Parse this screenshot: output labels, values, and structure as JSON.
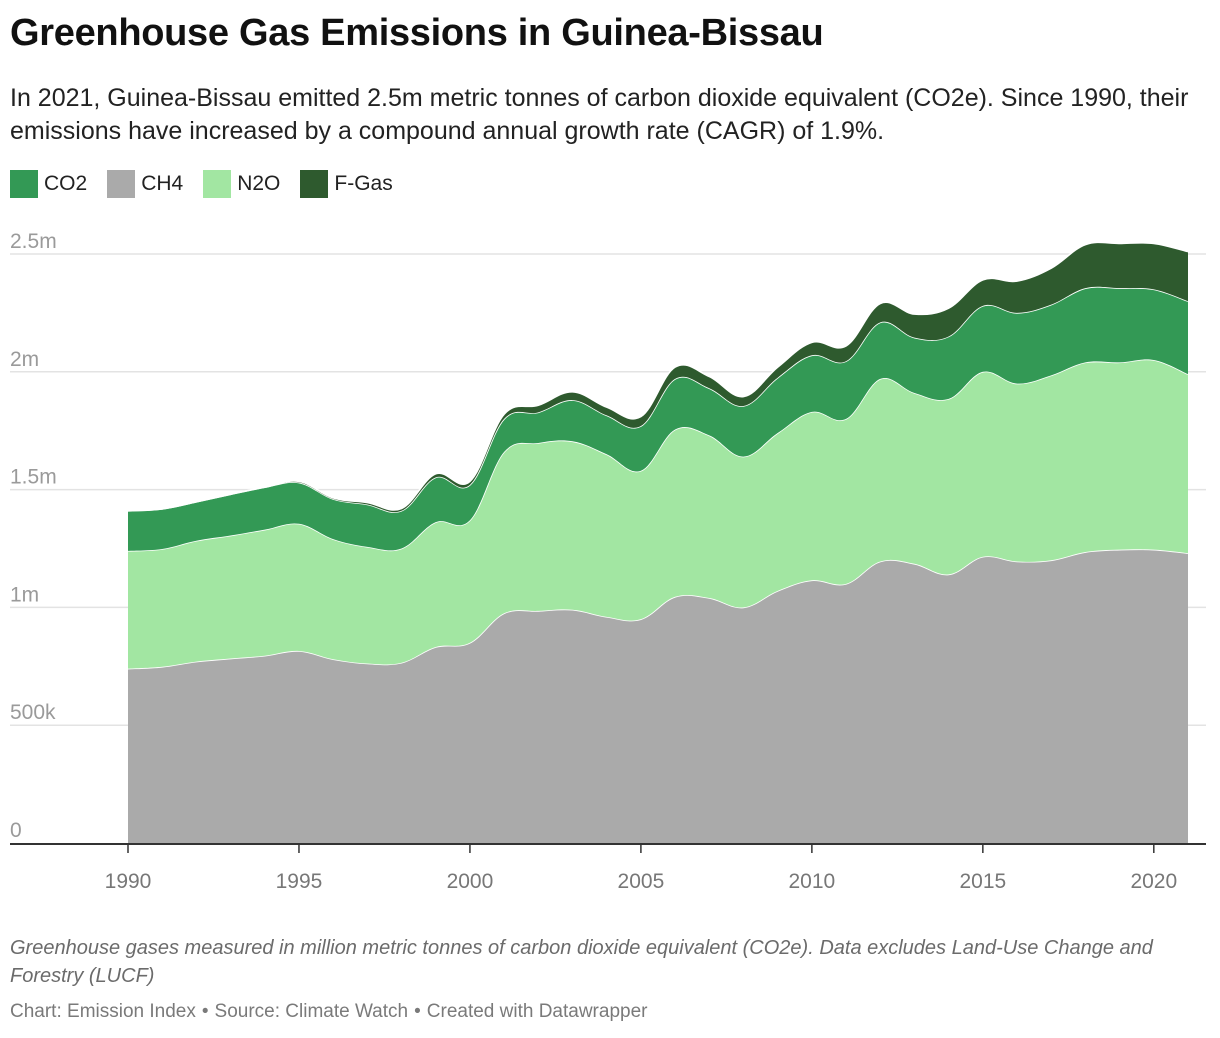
{
  "title": "Greenhouse Gas Emissions in Guinea-Bissau",
  "subtitle": "In 2021, Guinea-Bissau emitted 2.5m metric tonnes of carbon dioxide equivalent (CO2e). Since 1990, their emissions have increased by a compound annual growth rate (CAGR) of 1.9%.",
  "legend": [
    {
      "label": "CO2",
      "color": "#339955"
    },
    {
      "label": "CH4",
      "color": "#aaaaaa"
    },
    {
      "label": "N2O",
      "color": "#a2e6a2"
    },
    {
      "label": "F-Gas",
      "color": "#2e5a2e"
    }
  ],
  "note": "Greenhouse gases measured in million metric tonnes of carbon dioxide equivalent (CO2e). Data excludes Land-Use Change and Forestry (LUCF)",
  "credits": {
    "chart": "Chart: Emission Index",
    "source": "Source: Climate Watch",
    "created": "Created with Datawrapper"
  },
  "chart_data": {
    "type": "area",
    "stacked": true,
    "title": "Greenhouse Gas Emissions in Guinea-Bissau",
    "x": [
      1990,
      1991,
      1992,
      1993,
      1994,
      1995,
      1996,
      1997,
      1998,
      1999,
      2000,
      2001,
      2002,
      2003,
      2004,
      2005,
      2006,
      2007,
      2008,
      2009,
      2010,
      2011,
      2012,
      2013,
      2014,
      2015,
      2016,
      2017,
      2018,
      2019,
      2020,
      2021
    ],
    "xticks": [
      1990,
      1995,
      2000,
      2005,
      2010,
      2015,
      2020
    ],
    "ylim": [
      0,
      2500000
    ],
    "yticks": [
      {
        "value": 0,
        "label": "0"
      },
      {
        "value": 500000,
        "label": "500k"
      },
      {
        "value": 1000000,
        "label": "1m"
      },
      {
        "value": 1500000,
        "label": "1.5m"
      },
      {
        "value": 2000000,
        "label": "2m"
      },
      {
        "value": 2500000,
        "label": "2.5m"
      }
    ],
    "grid": true,
    "legend_position": "top-left",
    "series": [
      {
        "name": "CH4",
        "color": "#aaaaaa",
        "values": [
          740000,
          748000,
          770000,
          783000,
          795000,
          815000,
          780000,
          762000,
          765000,
          832000,
          850000,
          975000,
          985000,
          990000,
          960000,
          950000,
          1045000,
          1040000,
          1000000,
          1070000,
          1115000,
          1100000,
          1195000,
          1185000,
          1140000,
          1215000,
          1195000,
          1200000,
          1235000,
          1245000,
          1245000,
          1230000
        ]
      },
      {
        "name": "N2O",
        "color": "#a2e6a2",
        "values": [
          500000,
          500000,
          513000,
          522000,
          535000,
          540000,
          510000,
          495000,
          485000,
          530000,
          520000,
          685000,
          713000,
          715000,
          690000,
          630000,
          710000,
          690000,
          640000,
          670000,
          715000,
          700000,
          775000,
          725000,
          745000,
          785000,
          755000,
          785000,
          805000,
          795000,
          805000,
          760000
        ]
      },
      {
        "name": "CO2",
        "color": "#339955",
        "values": [
          170000,
          170000,
          165000,
          175000,
          180000,
          175000,
          170000,
          180000,
          160000,
          190000,
          150000,
          140000,
          130000,
          175000,
          165000,
          190000,
          215000,
          200000,
          215000,
          235000,
          240000,
          245000,
          240000,
          235000,
          265000,
          280000,
          300000,
          300000,
          315000,
          315000,
          300000,
          310000
        ]
      },
      {
        "name": "F-Gas",
        "color": "#2e5a2e",
        "values": [
          0,
          0,
          0,
          0,
          0,
          5000,
          5000,
          8000,
          10000,
          15000,
          15000,
          20000,
          30000,
          35000,
          35000,
          40000,
          50000,
          50000,
          40000,
          45000,
          55000,
          65000,
          80000,
          100000,
          120000,
          110000,
          135000,
          155000,
          185000,
          190000,
          195000,
          210000
        ]
      }
    ]
  }
}
